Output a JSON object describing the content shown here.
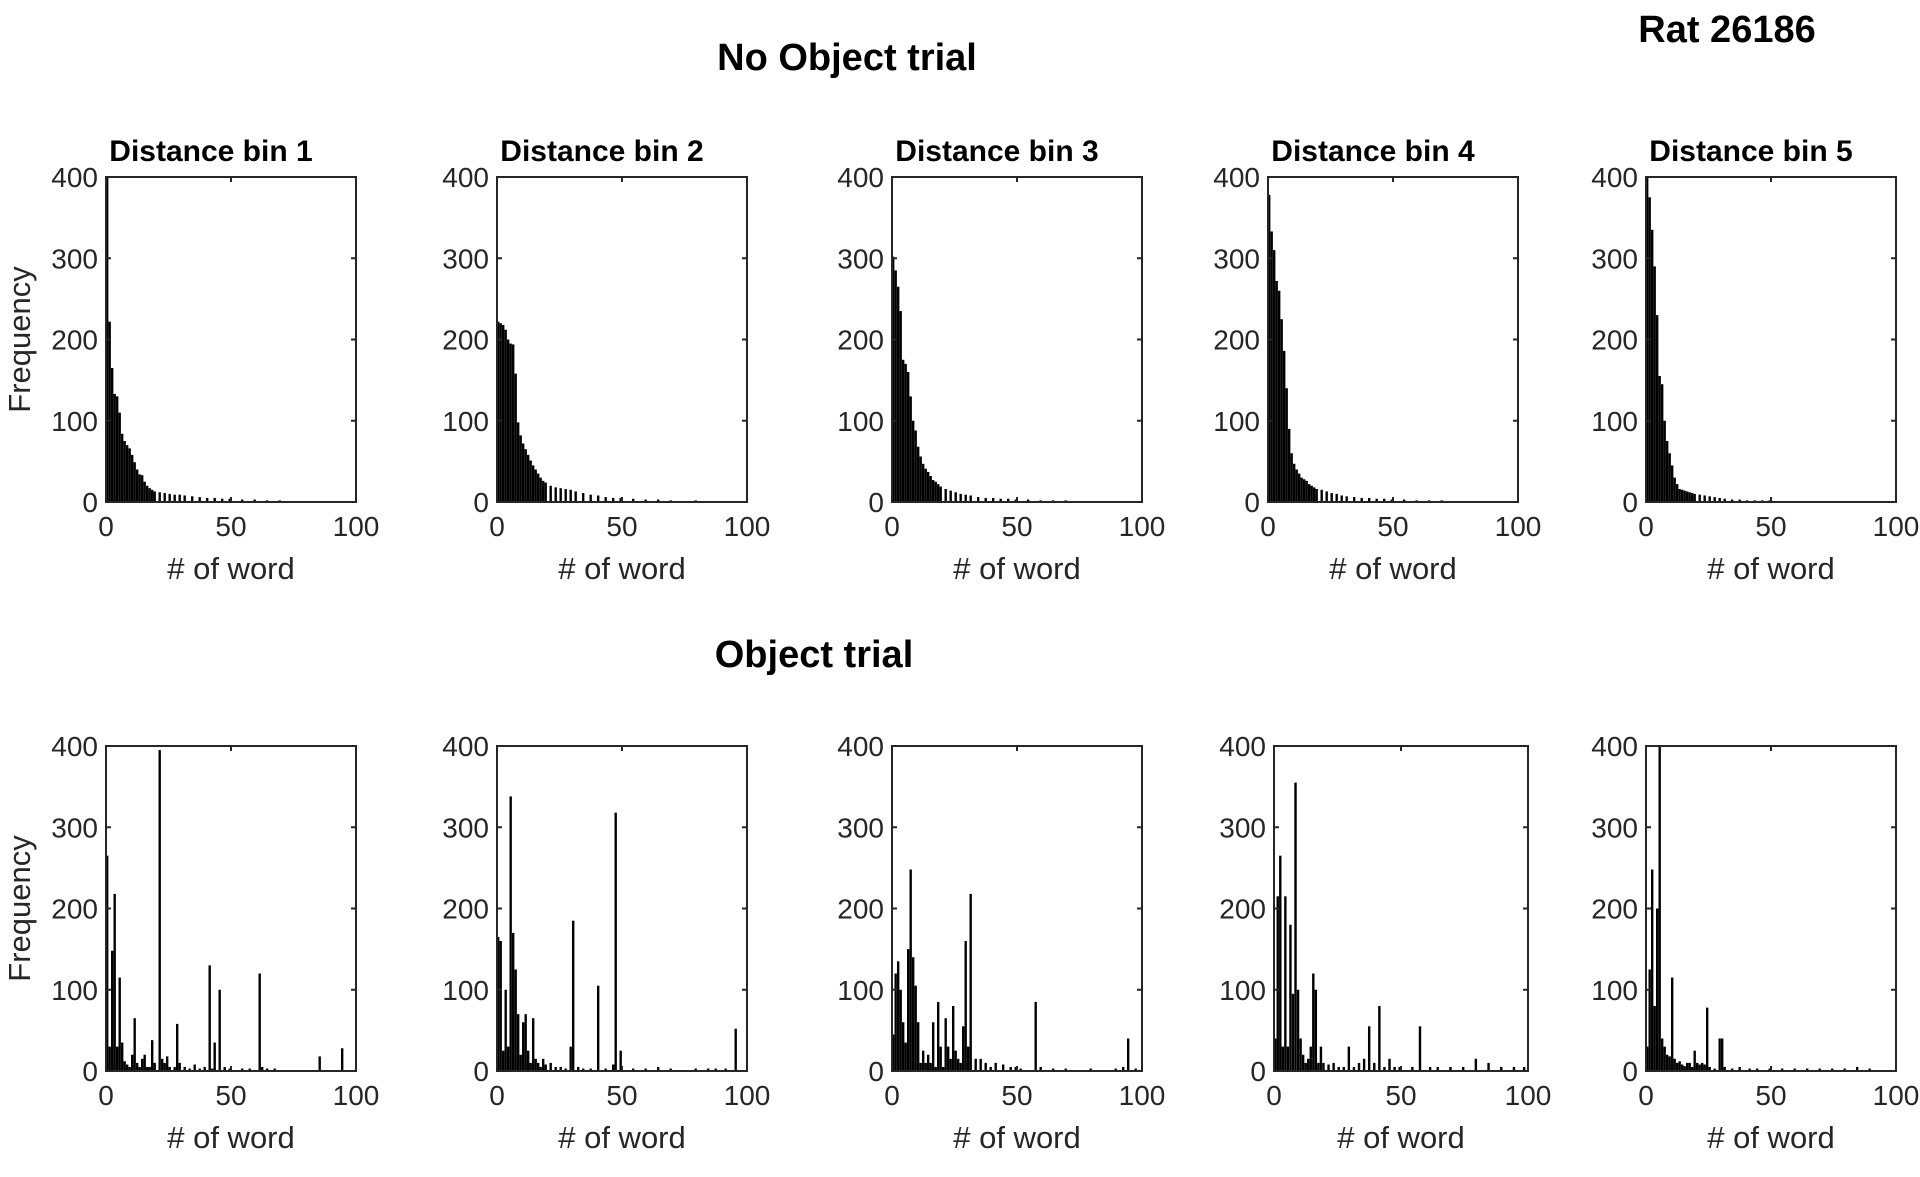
{
  "figure": {
    "title": "Rat 26186",
    "section_titles": [
      "No Object trial",
      "Object trial"
    ],
    "colors": {
      "bars": "#000000",
      "axes": "#262626",
      "background": "#ffffff"
    }
  },
  "chart_data": [
    {
      "type": "bar",
      "row": 0,
      "col": 0,
      "title": "Distance bin 1",
      "xlabel": "# of word",
      "ylabel": "Frequency",
      "xlim": [
        0,
        100
      ],
      "ylim": [
        0,
        400
      ],
      "xticks": [
        "0",
        "50",
        "100"
      ],
      "yticks": [
        "0",
        "100",
        "200",
        "300",
        "400"
      ],
      "x": [
        1,
        2,
        3,
        4,
        5,
        6,
        7,
        8,
        9,
        10,
        11,
        12,
        13,
        14,
        15,
        16,
        17,
        18,
        19,
        20,
        22,
        24,
        26,
        28,
        30,
        32,
        35,
        38,
        41,
        44,
        47,
        50,
        55,
        60,
        65,
        70,
        80,
        90,
        99
      ],
      "values": [
        400,
        222,
        165,
        133,
        130,
        110,
        84,
        75,
        70,
        66,
        58,
        49,
        40,
        34,
        33,
        25,
        20,
        17,
        15,
        13,
        12,
        11,
        10,
        9,
        9,
        8,
        7,
        6,
        5,
        5,
        4,
        4,
        3,
        3,
        2,
        2,
        1,
        1,
        1
      ]
    },
    {
      "type": "bar",
      "row": 0,
      "col": 1,
      "title": "Distance bin 2",
      "xlabel": "# of word",
      "ylabel": "",
      "xlim": [
        0,
        100
      ],
      "ylim": [
        0,
        400
      ],
      "xticks": [
        "0",
        "50",
        "100"
      ],
      "yticks": [
        "0",
        "100",
        "200",
        "300",
        "400"
      ],
      "x": [
        1,
        2,
        3,
        4,
        5,
        6,
        7,
        8,
        9,
        10,
        11,
        12,
        13,
        14,
        15,
        16,
        17,
        18,
        19,
        20,
        22,
        24,
        26,
        28,
        30,
        32,
        35,
        38,
        41,
        44,
        47,
        50,
        55,
        60,
        65,
        70,
        80,
        90,
        99
      ],
      "values": [
        222,
        220,
        218,
        212,
        200,
        195,
        194,
        158,
        98,
        82,
        72,
        65,
        58,
        51,
        45,
        40,
        35,
        30,
        26,
        24,
        20,
        18,
        17,
        16,
        15,
        13,
        11,
        9,
        8,
        6,
        5,
        5,
        4,
        3,
        3,
        2,
        2,
        1,
        1
      ]
    },
    {
      "type": "bar",
      "row": 0,
      "col": 2,
      "title": "Distance bin 3",
      "xlabel": "# of word",
      "ylabel": "",
      "xlim": [
        0,
        100
      ],
      "ylim": [
        0,
        400
      ],
      "xticks": [
        "0",
        "50",
        "100"
      ],
      "yticks": [
        "0",
        "100",
        "200",
        "300",
        "400"
      ],
      "x": [
        1,
        2,
        3,
        4,
        5,
        6,
        7,
        8,
        9,
        10,
        11,
        12,
        13,
        14,
        15,
        16,
        17,
        18,
        19,
        20,
        22,
        24,
        26,
        28,
        30,
        32,
        35,
        38,
        41,
        44,
        47,
        50,
        55,
        60,
        65,
        70,
        80,
        90,
        99
      ],
      "values": [
        302,
        285,
        265,
        235,
        175,
        170,
        160,
        130,
        100,
        88,
        68,
        56,
        47,
        41,
        37,
        32,
        27,
        25,
        22,
        19,
        16,
        14,
        12,
        10,
        9,
        8,
        6,
        5,
        5,
        4,
        4,
        3,
        3,
        2,
        2,
        2,
        1,
        1,
        1
      ]
    },
    {
      "type": "bar",
      "row": 0,
      "col": 3,
      "title": "Distance bin 4",
      "xlabel": "# of word",
      "ylabel": "",
      "xlim": [
        0,
        100
      ],
      "ylim": [
        0,
        400
      ],
      "xticks": [
        "0",
        "50",
        "100"
      ],
      "yticks": [
        "0",
        "100",
        "200",
        "300",
        "400"
      ],
      "x": [
        1,
        2,
        3,
        4,
        5,
        6,
        7,
        8,
        9,
        10,
        11,
        12,
        13,
        14,
        15,
        16,
        17,
        18,
        19,
        20,
        22,
        24,
        26,
        28,
        30,
        32,
        35,
        38,
        41,
        44,
        47,
        50,
        55,
        60,
        65,
        70,
        80,
        90,
        99
      ],
      "values": [
        378,
        333,
        310,
        272,
        260,
        225,
        186,
        140,
        90,
        60,
        47,
        40,
        35,
        30,
        28,
        26,
        22,
        20,
        18,
        16,
        15,
        13,
        11,
        10,
        8,
        7,
        6,
        5,
        5,
        4,
        4,
        3,
        3,
        2,
        2,
        2,
        1,
        1,
        1
      ]
    },
    {
      "type": "bar",
      "row": 0,
      "col": 4,
      "title": "Distance bin 5",
      "xlabel": "# of word",
      "ylabel": "",
      "xlim": [
        0,
        100
      ],
      "ylim": [
        0,
        400
      ],
      "xticks": [
        "0",
        "50",
        "100"
      ],
      "yticks": [
        "0",
        "100",
        "200",
        "300",
        "400"
      ],
      "x": [
        1,
        2,
        3,
        4,
        5,
        6,
        7,
        8,
        9,
        10,
        11,
        12,
        13,
        14,
        15,
        16,
        17,
        18,
        19,
        20,
        22,
        24,
        26,
        28,
        30,
        32,
        35,
        38,
        41,
        44,
        47,
        50,
        55,
        60,
        65,
        70,
        80,
        90,
        99
      ],
      "values": [
        400,
        375,
        335,
        290,
        230,
        155,
        145,
        100,
        75,
        60,
        45,
        30,
        22,
        16,
        15,
        14,
        13,
        12,
        11,
        10,
        9,
        8,
        7,
        6,
        5,
        4,
        3,
        3,
        2,
        2,
        2,
        2,
        1,
        1,
        1,
        1,
        1,
        1,
        1
      ]
    },
    {
      "type": "bar",
      "row": 1,
      "col": 0,
      "title": "",
      "xlabel": "# of word",
      "ylabel": "Frequency",
      "xlim": [
        0,
        100
      ],
      "ylim": [
        0,
        400
      ],
      "xticks": [
        "0",
        "50",
        "100"
      ],
      "yticks": [
        "0",
        "100",
        "200",
        "300",
        "400"
      ],
      "x": [
        1,
        2,
        3,
        4,
        5,
        6,
        7,
        8,
        9,
        10,
        11,
        12,
        13,
        14,
        15,
        16,
        17,
        18,
        19,
        20,
        22,
        23,
        24,
        25,
        26,
        28,
        29,
        30,
        32,
        34,
        36,
        38,
        40,
        42,
        43,
        44,
        46,
        48,
        50,
        55,
        58,
        62,
        63,
        65,
        68,
        86,
        95
      ],
      "values": [
        265,
        30,
        148,
        218,
        30,
        115,
        35,
        12,
        8,
        5,
        20,
        65,
        10,
        5,
        15,
        20,
        5,
        5,
        38,
        10,
        395,
        15,
        10,
        18,
        5,
        5,
        58,
        10,
        5,
        3,
        8,
        3,
        5,
        130,
        3,
        35,
        100,
        5,
        3,
        3,
        3,
        120,
        5,
        3,
        3,
        18,
        28
      ]
    },
    {
      "type": "bar",
      "row": 1,
      "col": 1,
      "title": "",
      "xlabel": "# of word",
      "ylabel": "",
      "xlim": [
        0,
        100
      ],
      "ylim": [
        0,
        400
      ],
      "xticks": [
        "0",
        "50",
        "100"
      ],
      "yticks": [
        "0",
        "100",
        "200",
        "300",
        "400"
      ],
      "x": [
        1,
        2,
        3,
        4,
        5,
        6,
        7,
        8,
        9,
        10,
        11,
        12,
        13,
        14,
        15,
        16,
        17,
        18,
        19,
        20,
        22,
        24,
        26,
        28,
        30,
        31,
        33,
        35,
        38,
        41,
        44,
        47,
        48,
        50,
        55,
        60,
        65,
        70,
        80,
        85,
        88,
        92,
        96
      ],
      "values": [
        165,
        160,
        25,
        100,
        30,
        338,
        170,
        125,
        70,
        20,
        60,
        70,
        25,
        10,
        65,
        15,
        10,
        5,
        15,
        8,
        10,
        5,
        5,
        3,
        30,
        185,
        5,
        3,
        3,
        105,
        3,
        8,
        318,
        25,
        3,
        3,
        5,
        3,
        3,
        3,
        3,
        3,
        52
      ]
    },
    {
      "type": "bar",
      "row": 1,
      "col": 2,
      "title": "",
      "xlabel": "# of word",
      "ylabel": "",
      "xlim": [
        0,
        100
      ],
      "ylim": [
        0,
        400
      ],
      "xticks": [
        "0",
        "50",
        "100"
      ],
      "yticks": [
        "0",
        "100",
        "200",
        "300",
        "400"
      ],
      "x": [
        1,
        2,
        3,
        4,
        5,
        6,
        7,
        8,
        9,
        10,
        11,
        12,
        13,
        14,
        15,
        16,
        17,
        18,
        19,
        20,
        21,
        22,
        23,
        24,
        25,
        26,
        27,
        28,
        29,
        30,
        31,
        32,
        34,
        36,
        38,
        40,
        42,
        45,
        48,
        50,
        52,
        58,
        60,
        65,
        70,
        80,
        90,
        93,
        95,
        98
      ],
      "values": [
        45,
        120,
        135,
        100,
        60,
        35,
        150,
        248,
        140,
        105,
        60,
        10,
        25,
        10,
        20,
        10,
        60,
        5,
        85,
        30,
        5,
        65,
        30,
        15,
        80,
        25,
        15,
        10,
        55,
        160,
        30,
        218,
        15,
        15,
        10,
        5,
        10,
        8,
        5,
        5,
        3,
        85,
        5,
        3,
        3,
        3,
        3,
        5,
        40,
        3
      ]
    },
    {
      "type": "bar",
      "row": 1,
      "col": 3,
      "title": "",
      "xlabel": "# of word",
      "ylabel": "",
      "xlim": [
        0,
        100
      ],
      "ylim": [
        0,
        400
      ],
      "xticks": [
        "0",
        "50",
        "100"
      ],
      "yticks": [
        "0",
        "100",
        "200",
        "300",
        "400"
      ],
      "x": [
        1,
        2,
        3,
        4,
        5,
        6,
        7,
        8,
        9,
        10,
        11,
        12,
        13,
        14,
        15,
        16,
        17,
        18,
        19,
        20,
        22,
        24,
        26,
        28,
        30,
        32,
        34,
        36,
        38,
        40,
        42,
        44,
        46,
        48,
        50,
        55,
        58,
        62,
        65,
        70,
        75,
        80,
        85,
        90,
        95,
        99
      ],
      "values": [
        40,
        215,
        265,
        30,
        215,
        30,
        180,
        95,
        355,
        100,
        40,
        20,
        10,
        15,
        30,
        120,
        100,
        10,
        30,
        10,
        8,
        10,
        5,
        5,
        30,
        5,
        10,
        15,
        55,
        10,
        80,
        5,
        15,
        5,
        5,
        5,
        55,
        5,
        5,
        5,
        5,
        15,
        10,
        5,
        5,
        5
      ]
    },
    {
      "type": "bar",
      "row": 1,
      "col": 4,
      "title": "",
      "xlabel": "# of word",
      "ylabel": "",
      "xlim": [
        0,
        100
      ],
      "ylim": [
        0,
        400
      ],
      "xticks": [
        "0",
        "50",
        "100"
      ],
      "yticks": [
        "0",
        "100",
        "200",
        "300",
        "400"
      ],
      "x": [
        1,
        2,
        3,
        4,
        5,
        6,
        7,
        8,
        9,
        10,
        11,
        12,
        13,
        14,
        15,
        16,
        17,
        18,
        19,
        20,
        21,
        22,
        23,
        24,
        25,
        26,
        28,
        30,
        31,
        32,
        35,
        38,
        42,
        45,
        50,
        55,
        60,
        65,
        70,
        75,
        80,
        85,
        90
      ],
      "values": [
        30,
        125,
        248,
        80,
        200,
        400,
        40,
        30,
        20,
        18,
        115,
        15,
        10,
        12,
        8,
        6,
        10,
        10,
        5,
        25,
        10,
        8,
        10,
        8,
        78,
        5,
        3,
        40,
        40,
        5,
        3,
        5,
        3,
        3,
        3,
        3,
        3,
        3,
        3,
        3,
        3,
        5,
        3
      ]
    }
  ]
}
